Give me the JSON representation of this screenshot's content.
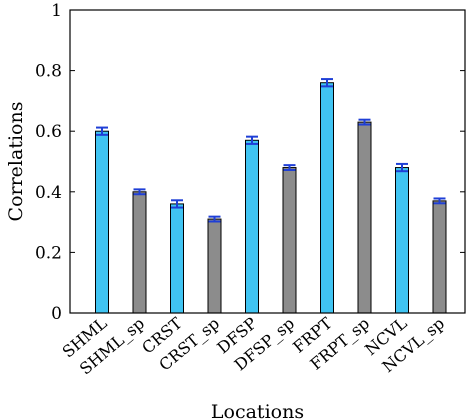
{
  "chart_data": {
    "type": "bar",
    "title": "",
    "xlabel": "Locations",
    "ylabel": "Correlations",
    "ylim": [
      0,
      1
    ],
    "yticks": [
      "0",
      "0.2",
      "0.4",
      "0.6",
      "0.8",
      "1"
    ],
    "grid": false,
    "categories": [
      "SHML",
      "SHML_sp",
      "CRST",
      "CRST_sp",
      "DFSP",
      "DFSP_sp",
      "FRPT",
      "FRPT_sp",
      "NCVL",
      "NCVL_sp"
    ],
    "values": [
      0.6,
      0.4,
      0.36,
      0.31,
      0.57,
      0.48,
      0.76,
      0.63,
      0.48,
      0.37
    ],
    "errors": [
      0.012,
      0.008,
      0.012,
      0.008,
      0.012,
      0.008,
      0.012,
      0.008,
      0.012,
      0.008
    ],
    "colors": [
      "#40c4f2",
      "#8c8c8c",
      "#40c4f2",
      "#8c8c8c",
      "#40c4f2",
      "#8c8c8c",
      "#40c4f2",
      "#8c8c8c",
      "#40c4f2",
      "#8c8c8c"
    ],
    "error_color": "#1f3fd6"
  }
}
